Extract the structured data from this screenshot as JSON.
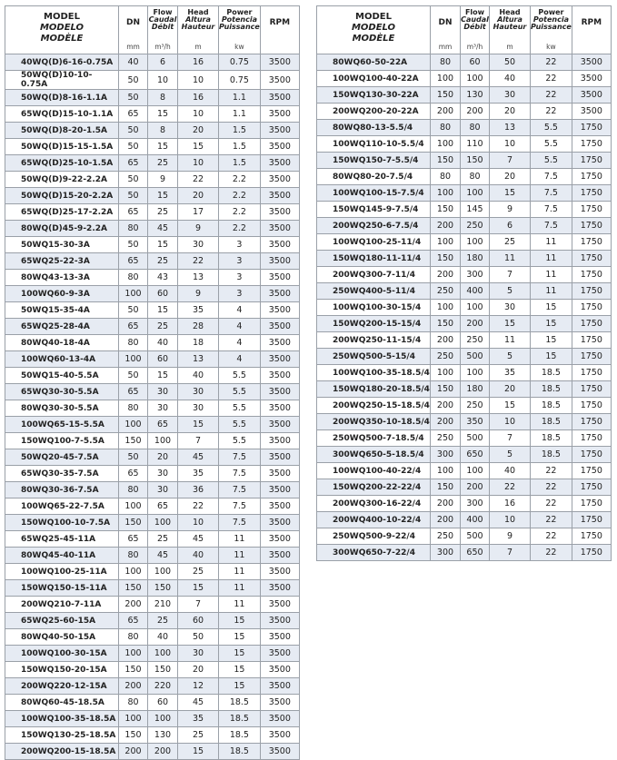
{
  "header": {
    "model": [
      "MODEL",
      "MODELO",
      "MODÈLE"
    ],
    "dn": "DN",
    "dn_unit": "mm",
    "flow": [
      "Flow",
      "Caudal",
      "Débit"
    ],
    "flow_unit": "m³/h",
    "head": [
      "Head",
      "Altura",
      "Hauteur"
    ],
    "head_unit": "m",
    "power": [
      "Power",
      "Potencia",
      "Puissance"
    ],
    "power_unit": "kw",
    "rpm": "RPM"
  },
  "left_table": [
    [
      "40WQ(D)6-16-0.75A",
      "40",
      "6",
      "16",
      "0.75",
      "3500"
    ],
    [
      "50WQ(D)10-10-0.75A",
      "50",
      "10",
      "10",
      "0.75",
      "3500"
    ],
    [
      "50WQ(D)8-16-1.1A",
      "50",
      "8",
      "16",
      "1.1",
      "3500"
    ],
    [
      "65WQ(D)15-10-1.1A",
      "65",
      "15",
      "10",
      "1.1",
      "3500"
    ],
    [
      "50WQ(D)8-20-1.5A",
      "50",
      "8",
      "20",
      "1.5",
      "3500"
    ],
    [
      "50WQ(D)15-15-1.5A",
      "50",
      "15",
      "15",
      "1.5",
      "3500"
    ],
    [
      "65WQ(D)25-10-1.5A",
      "65",
      "25",
      "10",
      "1.5",
      "3500"
    ],
    [
      "50WQ(D)9-22-2.2A",
      "50",
      "9",
      "22",
      "2.2",
      "3500"
    ],
    [
      "50WQ(D)15-20-2.2A",
      "50",
      "15",
      "20",
      "2.2",
      "3500"
    ],
    [
      "65WQ(D)25-17-2.2A",
      "65",
      "25",
      "17",
      "2.2",
      "3500"
    ],
    [
      "80WQ(D)45-9-2.2A",
      "80",
      "45",
      "9",
      "2.2",
      "3500"
    ],
    [
      "50WQ15-30-3A",
      "50",
      "15",
      "30",
      "3",
      "3500"
    ],
    [
      "65WQ25-22-3A",
      "65",
      "25",
      "22",
      "3",
      "3500"
    ],
    [
      "80WQ43-13-3A",
      "80",
      "43",
      "13",
      "3",
      "3500"
    ],
    [
      "100WQ60-9-3A",
      "100",
      "60",
      "9",
      "3",
      "3500"
    ],
    [
      "50WQ15-35-4A",
      "50",
      "15",
      "35",
      "4",
      "3500"
    ],
    [
      "65WQ25-28-4A",
      "65",
      "25",
      "28",
      "4",
      "3500"
    ],
    [
      "80WQ40-18-4A",
      "80",
      "40",
      "18",
      "4",
      "3500"
    ],
    [
      "100WQ60-13-4A",
      "100",
      "60",
      "13",
      "4",
      "3500"
    ],
    [
      "50WQ15-40-5.5A",
      "50",
      "15",
      "40",
      "5.5",
      "3500"
    ],
    [
      "65WQ30-30-5.5A",
      "65",
      "30",
      "30",
      "5.5",
      "3500"
    ],
    [
      "80WQ30-30-5.5A",
      "80",
      "30",
      "30",
      "5.5",
      "3500"
    ],
    [
      "100WQ65-15-5.5A",
      "100",
      "65",
      "15",
      "5.5",
      "3500"
    ],
    [
      "150WQ100-7-5.5A",
      "150",
      "100",
      "7",
      "5.5",
      "3500"
    ],
    [
      "50WQ20-45-7.5A",
      "50",
      "20",
      "45",
      "7.5",
      "3500"
    ],
    [
      "65WQ30-35-7.5A",
      "65",
      "30",
      "35",
      "7.5",
      "3500"
    ],
    [
      "80WQ30-36-7.5A",
      "80",
      "30",
      "36",
      "7.5",
      "3500"
    ],
    [
      "100WQ65-22-7.5A",
      "100",
      "65",
      "22",
      "7.5",
      "3500"
    ],
    [
      "150WQ100-10-7.5A",
      "150",
      "100",
      "10",
      "7.5",
      "3500"
    ],
    [
      "65WQ25-45-11A",
      "65",
      "25",
      "45",
      "11",
      "3500"
    ],
    [
      "80WQ45-40-11A",
      "80",
      "45",
      "40",
      "11",
      "3500"
    ],
    [
      "100WQ100-25-11A",
      "100",
      "100",
      "25",
      "11",
      "3500"
    ],
    [
      "150WQ150-15-11A",
      "150",
      "150",
      "15",
      "11",
      "3500"
    ],
    [
      "200WQ210-7-11A",
      "200",
      "210",
      "7",
      "11",
      "3500"
    ],
    [
      "65WQ25-60-15A",
      "65",
      "25",
      "60",
      "15",
      "3500"
    ],
    [
      "80WQ40-50-15A",
      "80",
      "40",
      "50",
      "15",
      "3500"
    ],
    [
      "100WQ100-30-15A",
      "100",
      "100",
      "30",
      "15",
      "3500"
    ],
    [
      "150WQ150-20-15A",
      "150",
      "150",
      "20",
      "15",
      "3500"
    ],
    [
      "200WQ220-12-15A",
      "200",
      "220",
      "12",
      "15",
      "3500"
    ],
    [
      "80WQ60-45-18.5A",
      "80",
      "60",
      "45",
      "18.5",
      "3500"
    ],
    [
      "100WQ100-35-18.5A",
      "100",
      "100",
      "35",
      "18.5",
      "3500"
    ],
    [
      "150WQ130-25-18.5A",
      "150",
      "130",
      "25",
      "18.5",
      "3500"
    ],
    [
      "200WQ200-15-18.5A",
      "200",
      "200",
      "15",
      "18.5",
      "3500"
    ]
  ],
  "right_table": [
    [
      "80WQ60-50-22A",
      "80",
      "60",
      "50",
      "22",
      "3500"
    ],
    [
      "100WQ100-40-22A",
      "100",
      "100",
      "40",
      "22",
      "3500"
    ],
    [
      "150WQ130-30-22A",
      "150",
      "130",
      "30",
      "22",
      "3500"
    ],
    [
      "200WQ200-20-22A",
      "200",
      "200",
      "20",
      "22",
      "3500"
    ],
    [
      "80WQ80-13-5.5/4",
      "80",
      "80",
      "13",
      "5.5",
      "1750"
    ],
    [
      "100WQ110-10-5.5/4",
      "100",
      "110",
      "10",
      "5.5",
      "1750"
    ],
    [
      "150WQ150-7-5.5/4",
      "150",
      "150",
      "7",
      "5.5",
      "1750"
    ],
    [
      "80WQ80-20-7.5/4",
      "80",
      "80",
      "20",
      "7.5",
      "1750"
    ],
    [
      "100WQ100-15-7.5/4",
      "100",
      "100",
      "15",
      "7.5",
      "1750"
    ],
    [
      "150WQ145-9-7.5/4",
      "150",
      "145",
      "9",
      "7.5",
      "1750"
    ],
    [
      "200WQ250-6-7.5/4",
      "200",
      "250",
      "6",
      "7.5",
      "1750"
    ],
    [
      "100WQ100-25-11/4",
      "100",
      "100",
      "25",
      "11",
      "1750"
    ],
    [
      "150WQ180-11-11/4",
      "150",
      "180",
      "11",
      "11",
      "1750"
    ],
    [
      "200WQ300-7-11/4",
      "200",
      "300",
      "7",
      "11",
      "1750"
    ],
    [
      "250WQ400-5-11/4",
      "250",
      "400",
      "5",
      "11",
      "1750"
    ],
    [
      "100WQ100-30-15/4",
      "100",
      "100",
      "30",
      "15",
      "1750"
    ],
    [
      "150WQ200-15-15/4",
      "150",
      "200",
      "15",
      "15",
      "1750"
    ],
    [
      "200WQ250-11-15/4",
      "200",
      "250",
      "11",
      "15",
      "1750"
    ],
    [
      "250WQ500-5-15/4",
      "250",
      "500",
      "5",
      "15",
      "1750"
    ],
    [
      "100WQ100-35-18.5/4",
      "100",
      "100",
      "35",
      "18.5",
      "1750"
    ],
    [
      "150WQ180-20-18.5/4",
      "150",
      "180",
      "20",
      "18.5",
      "1750"
    ],
    [
      "200WQ250-15-18.5/4",
      "200",
      "250",
      "15",
      "18.5",
      "1750"
    ],
    [
      "200WQ350-10-18.5/4",
      "200",
      "350",
      "10",
      "18.5",
      "1750"
    ],
    [
      "250WQ500-7-18.5/4",
      "250",
      "500",
      "7",
      "18.5",
      "1750"
    ],
    [
      "300WQ650-5-18.5/4",
      "300",
      "650",
      "5",
      "18.5",
      "1750"
    ],
    [
      "100WQ100-40-22/4",
      "100",
      "100",
      "40",
      "22",
      "1750"
    ],
    [
      "150WQ200-22-22/4",
      "150",
      "200",
      "22",
      "22",
      "1750"
    ],
    [
      "200WQ300-16-22/4",
      "200",
      "300",
      "16",
      "22",
      "1750"
    ],
    [
      "200WQ400-10-22/4",
      "200",
      "400",
      "10",
      "22",
      "1750"
    ],
    [
      "250WQ500-9-22/4",
      "250",
      "500",
      "9",
      "22",
      "1750"
    ],
    [
      "300WQ650-7-22/4",
      "300",
      "650",
      "7",
      "22",
      "1750"
    ]
  ]
}
